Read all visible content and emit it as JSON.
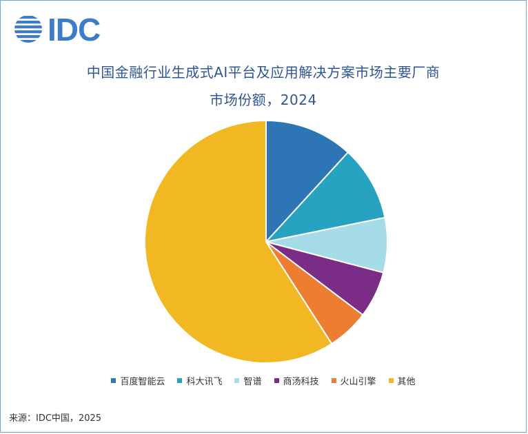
{
  "logo": {
    "text": "IDC",
    "color": "#3d7cc9"
  },
  "title": {
    "line1": "中国金融行业生成式AI平台及应用解决方案市场主要厂商",
    "line2": "市场份额，2024"
  },
  "chart_data": {
    "type": "pie",
    "title": "中国金融行业生成式AI平台及应用解决方案市场主要厂商市场份额，2024",
    "legend_position": "bottom",
    "start_angle_deg": 0,
    "direction": "clockwise",
    "series": [
      {
        "name": "百度智能云",
        "value": 11.8,
        "color": "#2e75b6"
      },
      {
        "name": "科大讯飞",
        "value": 10.0,
        "color": "#27a2c0"
      },
      {
        "name": "智谱",
        "value": 7.3,
        "color": "#a6dbe8"
      },
      {
        "name": "商汤科技",
        "value": 6.2,
        "color": "#7a2c87"
      },
      {
        "name": "火山引擎",
        "value": 5.6,
        "color": "#ed7d31"
      },
      {
        "name": "其他",
        "value": 59.1,
        "color": "#f2b824"
      }
    ]
  },
  "source": "来源：IDC中国，2025"
}
